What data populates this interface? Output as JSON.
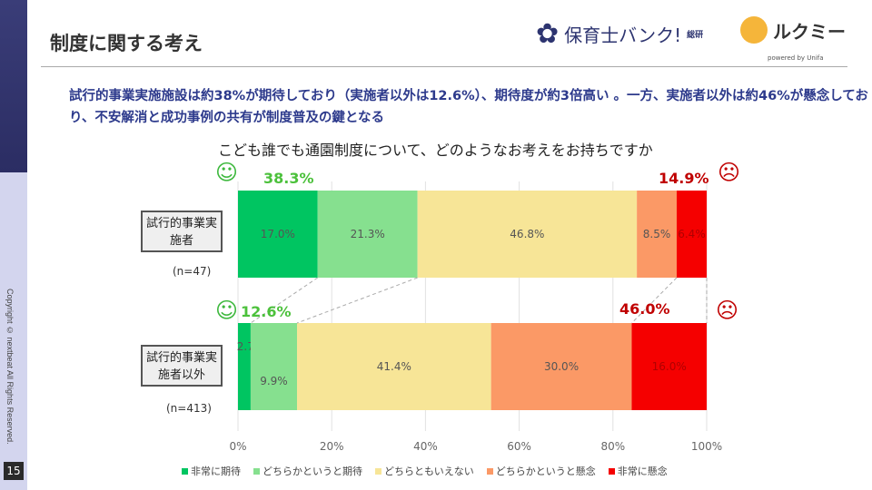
{
  "page": {
    "title": "制度に関する考え",
    "page_number": "15",
    "copyright": "Copyright © nextbeat All Rights Reserved.",
    "logo1": {
      "name": "保育士バンク!",
      "sub": "総研"
    },
    "logo2": {
      "name": "ルクミー",
      "powered": "powered by Unifa"
    },
    "lead": "試行的事業実施施設は約38%が期待しており（実施者以外は12.6%）、期待度が約3倍高い 。一方、実施者以外は約46%が懸念しており、不安解消と成功事例の共有が制度普及の鍵となる"
  },
  "chart_data": {
    "type": "bar",
    "orientation": "horizontal",
    "stacked": true,
    "title": "こども誰でも通園制度について、どのようなお考えをお持ちですか",
    "categories": [
      "試行的事業実施者",
      "試行的事業実施者以外"
    ],
    "sample_sizes": [
      "(n=47)",
      "(n=413)"
    ],
    "series": [
      {
        "name": "非常に期待",
        "color": "#00c561",
        "values": [
          17.0,
          2.7
        ]
      },
      {
        "name": "どちらかというと期待",
        "color": "#86e08f",
        "values": [
          21.3,
          9.9
        ]
      },
      {
        "name": "どちらともいえない",
        "color": "#f7e597",
        "values": [
          46.8,
          41.4
        ]
      },
      {
        "name": "どちらかというと懸念",
        "color": "#fb9966",
        "values": [
          8.5,
          30.0
        ]
      },
      {
        "name": "非常に懸念",
        "color": "#f50000",
        "values": [
          6.4,
          16.0
        ]
      }
    ],
    "positive_totals": [
      "38.3%",
      "12.6%"
    ],
    "negative_totals": [
      "14.9%",
      "46.0%"
    ],
    "xlim": [
      0,
      100
    ],
    "xticks": [
      "0%",
      "20%",
      "40%",
      "60%",
      "80%",
      "100%"
    ],
    "grid": true,
    "legend": "bottom"
  }
}
